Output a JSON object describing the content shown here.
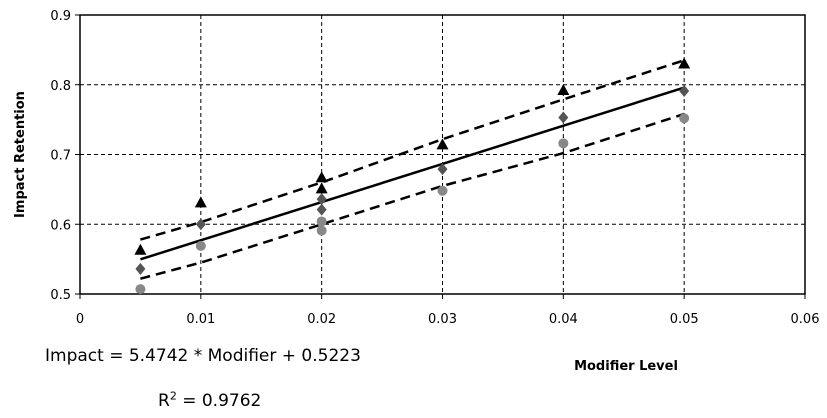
{
  "chart_data": {
    "type": "scatter",
    "xlabel": "Modifier Level",
    "ylabel": "Impact Retention",
    "xlim": [
      0,
      0.06
    ],
    "ylim": [
      0.5,
      0.9
    ],
    "x_ticks": [
      "0",
      "0.01",
      "0.02",
      "0.03",
      "0.04",
      "0.05",
      "0.06"
    ],
    "y_ticks": [
      "0.5",
      "0.6",
      "0.7",
      "0.8",
      "0.9"
    ],
    "grid": true,
    "grid_style": "dashed",
    "series": [
      {
        "marker": "triangle",
        "color": "#000000",
        "points": [
          [
            0.005,
            0.562
          ],
          [
            0.01,
            0.63
          ],
          [
            0.02,
            0.666
          ],
          [
            0.02,
            0.65
          ],
          [
            0.03,
            0.713
          ],
          [
            0.04,
            0.791
          ],
          [
            0.05,
            0.829
          ]
        ]
      },
      {
        "marker": "diamond",
        "color": "#555555",
        "points": [
          [
            0.005,
            0.536
          ],
          [
            0.01,
            0.6
          ],
          [
            0.02,
            0.636
          ],
          [
            0.02,
            0.621
          ],
          [
            0.03,
            0.679
          ],
          [
            0.04,
            0.753
          ],
          [
            0.05,
            0.791
          ]
        ]
      },
      {
        "marker": "circle",
        "color": "#888888",
        "points": [
          [
            0.005,
            0.507
          ],
          [
            0.01,
            0.569
          ],
          [
            0.02,
            0.604
          ],
          [
            0.02,
            0.591
          ],
          [
            0.03,
            0.648
          ],
          [
            0.04,
            0.716
          ],
          [
            0.05,
            0.752
          ]
        ]
      }
    ],
    "fit_line": {
      "slope": 5.4742,
      "intercept": 0.5223,
      "x_range": [
        0.005,
        0.05
      ]
    },
    "upper_band": [
      [
        0.005,
        0.578
      ],
      [
        0.01,
        0.603
      ],
      [
        0.02,
        0.66
      ],
      [
        0.03,
        0.722
      ],
      [
        0.04,
        0.779
      ],
      [
        0.05,
        0.835
      ]
    ],
    "lower_band": [
      [
        0.005,
        0.522
      ],
      [
        0.01,
        0.545
      ],
      [
        0.02,
        0.6
      ],
      [
        0.03,
        0.655
      ],
      [
        0.04,
        0.702
      ],
      [
        0.05,
        0.758
      ]
    ],
    "equation": {
      "line1": "Impact = 5.4742 * Modifier + 0.5223",
      "r2_prefix": "R",
      "r2_sup": "2",
      "r2_value": " = 0.9762"
    }
  }
}
